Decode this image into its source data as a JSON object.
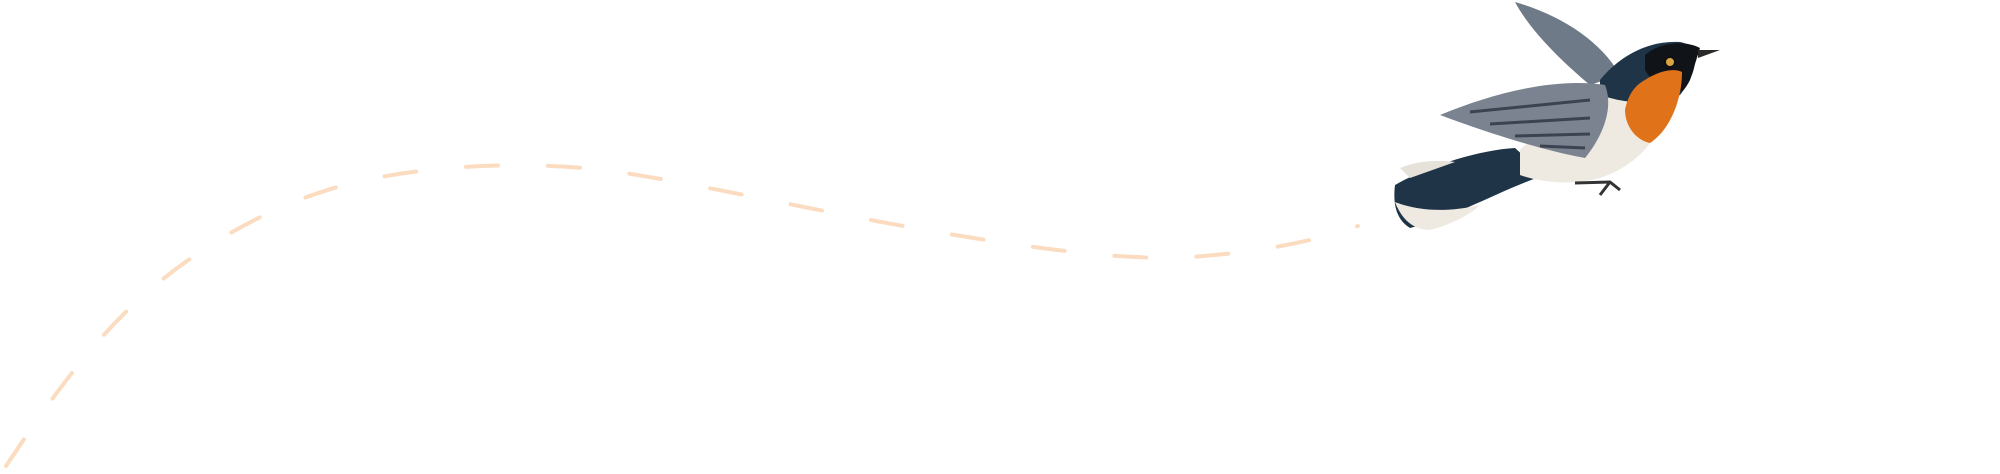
{
  "background": "#ffffff",
  "flight_path": {
    "color": "#fbdcc0",
    "style": "dashed"
  },
  "illustration": {
    "icon": "bird-illustration",
    "colors": {
      "back": "#1f3447",
      "throat": "#e0731a",
      "belly": "#eeeae2",
      "wing": "#7c8390",
      "mask": "#101418"
    }
  }
}
